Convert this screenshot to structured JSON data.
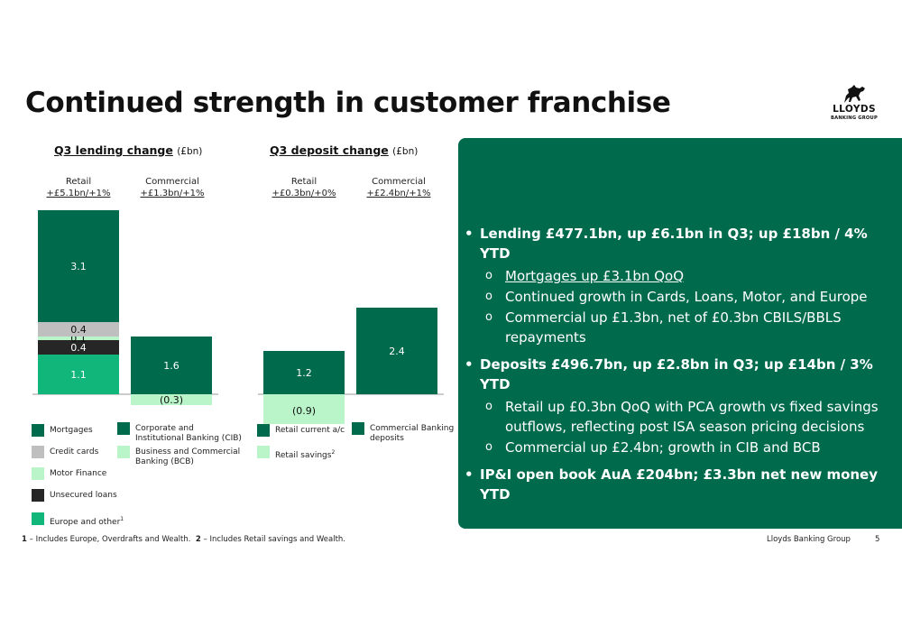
{
  "title": "Continued strength in customer franchise",
  "logo": {
    "line1": "LLOYDS",
    "line2": "BANKING GROUP"
  },
  "colors": {
    "mortgages": "#006a4d",
    "credit_cards": "#bfbfbf",
    "motor_finance": "#b9f5c8",
    "unsecured_loans": "#262626",
    "europe_other": "#11b67a",
    "cib": "#006a4d",
    "bcb": "#b9f5c8",
    "retail_current": "#006a4d",
    "retail_savings": "#b9f5c8",
    "commercial_deposits": "#006a4d",
    "panel": "#006a4d"
  },
  "lending": {
    "title": "Q3 lending change",
    "unit": "(£bn)",
    "retail_label": "Retail",
    "retail_sub": "+£5.1bn/+1%",
    "commercial_label": "Commercial",
    "commercial_sub": "+£1.3bn/+1%"
  },
  "deposits": {
    "title": "Q3 deposit change",
    "unit": "(£bn)",
    "retail_label": "Retail",
    "retail_sub": "+£0.3bn/+0%",
    "commercial_label": "Commercial",
    "commercial_sub": "+£2.4bn/+1%"
  },
  "chart_data": [
    {
      "type": "bar",
      "stacked": true,
      "title": "Q3 lending change (£bn)",
      "categories": [
        "Retail",
        "Commercial"
      ],
      "series": [
        {
          "name": "Europe and other",
          "values": [
            1.1,
            0
          ],
          "labels": [
            "1.1",
            ""
          ],
          "color_key": "europe_other"
        },
        {
          "name": "Unsecured loans",
          "values": [
            0.4,
            0
          ],
          "labels": [
            "0.4",
            ""
          ],
          "color_key": "unsecured_loans"
        },
        {
          "name": "Motor Finance",
          "values": [
            0.1,
            0
          ],
          "labels": [
            "0.1",
            ""
          ],
          "color_key": "motor_finance"
        },
        {
          "name": "Credit cards",
          "values": [
            0.4,
            0
          ],
          "labels": [
            "0.4",
            ""
          ],
          "color_key": "credit_cards"
        },
        {
          "name": "Mortgages",
          "values": [
            3.1,
            0
          ],
          "labels": [
            "3.1",
            ""
          ],
          "color_key": "mortgages"
        },
        {
          "name": "Corporate and Institutional Banking (CIB)",
          "values": [
            0,
            1.6
          ],
          "labels": [
            "",
            "1.6"
          ],
          "color_key": "cib"
        },
        {
          "name": "Business and Commercial Banking (BCB)",
          "values": [
            0,
            -0.3
          ],
          "labels": [
            "",
            "(0.3)"
          ],
          "color_key": "bcb"
        }
      ]
    },
    {
      "type": "bar",
      "stacked": true,
      "title": "Q3 deposit change (£bn)",
      "categories": [
        "Retail",
        "Commercial"
      ],
      "series": [
        {
          "name": "Retail current a/c",
          "values": [
            1.2,
            0
          ],
          "labels": [
            "1.2",
            ""
          ],
          "color_key": "retail_current"
        },
        {
          "name": "Retail savings",
          "values": [
            -0.9,
            0
          ],
          "labels": [
            "(0.9)",
            ""
          ],
          "color_key": "retail_savings"
        },
        {
          "name": "Commercial Banking deposits",
          "values": [
            0,
            2.4
          ],
          "labels": [
            "",
            "2.4"
          ],
          "color_key": "commercial_deposits"
        }
      ]
    }
  ],
  "legend_lending": [
    {
      "label": "Mortgages",
      "color_key": "mortgages"
    },
    {
      "label": "Credit cards",
      "color_key": "credit_cards"
    },
    {
      "label": "Motor Finance",
      "color_key": "motor_finance"
    },
    {
      "label": "Unsecured loans",
      "color_key": "unsecured_loans"
    },
    {
      "label": "Europe and other",
      "sup": "1",
      "color_key": "europe_other"
    },
    {
      "label": "Corporate and Institutional Banking (CIB)",
      "color_key": "cib"
    },
    {
      "label": "Business and Commercial Banking (BCB)",
      "color_key": "bcb"
    }
  ],
  "legend_deposits": [
    {
      "label": "Retail current a/c",
      "color_key": "retail_current"
    },
    {
      "label": "Retail savings",
      "sup": "2",
      "color_key": "retail_savings"
    },
    {
      "label": "Commercial Banking deposits",
      "color_key": "commercial_deposits"
    }
  ],
  "bullets": {
    "b1": "Lending £477.1bn, up £6.1bn in Q3; up £18bn / 4% YTD",
    "b1_s1": "Mortgages up £3.1bn QoQ",
    "b1_s2": "Continued growth in Cards, Loans, Motor, and Europe",
    "b1_s3": "Commercial up £1.3bn, net of £0.3bn CBILS/BBLS repayments",
    "b2": "Deposits £496.7bn, up £2.8bn in Q3; up £14bn / 3% YTD",
    "b2_s1": "Retail up £0.3bn QoQ with PCA growth vs fixed savings outflows, reflecting post ISA season pricing decisions",
    "b2_s2": "Commercial up £2.4bn; growth in CIB and BCB",
    "b3": "IP&I open book AuA £204bn; £3.3bn net new money YTD"
  },
  "footnote": {
    "n1": "1",
    "t1": " – Includes Europe, Overdrafts and Wealth.",
    "n2": "2",
    "t2": " – Includes Retail savings and Wealth."
  },
  "footer": "Lloyds Banking Group",
  "page_number": "5"
}
